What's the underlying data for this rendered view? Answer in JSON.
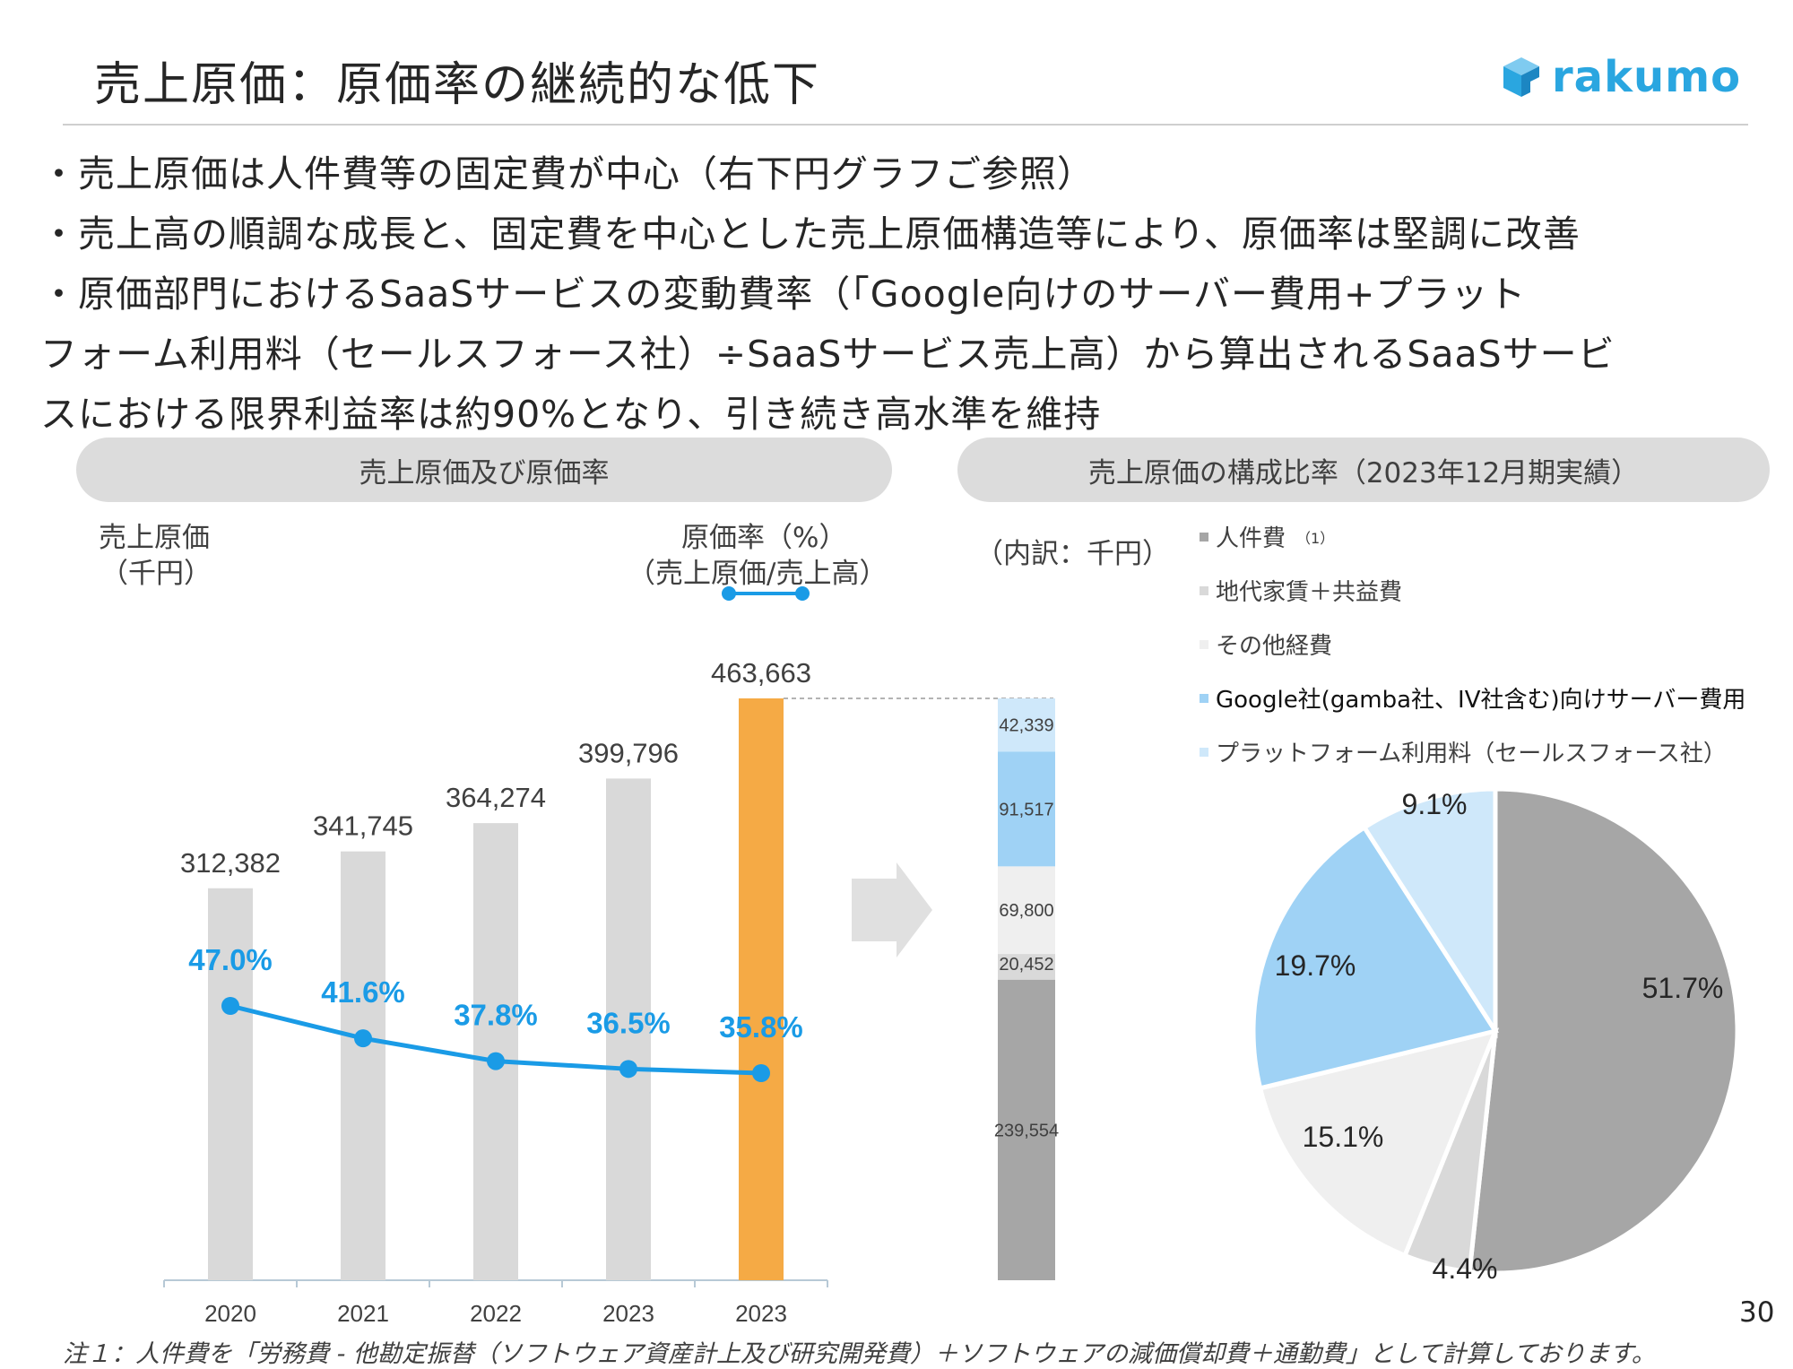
{
  "slide": {
    "title": "売上原価：原価率の継続的な低下",
    "logo_text": "rakumo",
    "page_number": "30",
    "footnote": "注１：人件費を「労務費 - 他勘定振替（ソフトウェア資産計上及び研究開発費）＋ソフトウェアの減価償却費＋通勤費」として計算しております。"
  },
  "bullets": [
    "・売上原価は人件費等の固定費が中心（右下円グラフご参照）",
    "・売上高の順調な成長と、固定費を中心とした売上原価構造等により、原価率は堅調に改善",
    "・原価部門におけるSaaSサービスの変動費率（「Google向けのサーバー費用+プラット",
    "フォーム利用料（セールスフォース社）÷SaaSサービス売上高）から算出されるSaaSサービ",
    "スにおける限界利益率は約90%となり、引き続き高水準を維持"
  ],
  "left_panel": {
    "header": "売上原価及び原価率",
    "y_label_line1": "売上原価",
    "y_label_line2": "（千円）",
    "rate_label_line1": "原価率（%）",
    "rate_label_line2": "（売上原価/売上高）"
  },
  "right_panel": {
    "header": "売上原価の構成比率（2023年12月期実績）",
    "unit_label": "（内訳：千円）",
    "legend": [
      {
        "label": "人件費",
        "note": "（1）",
        "color": "#a6a6a6"
      },
      {
        "label": "地代家賃＋共益費",
        "note": "",
        "color": "#d9d9d9"
      },
      {
        "label": "その他経費",
        "note": "",
        "color": "#efefef"
      },
      {
        "label": "Google社(gamba社、IV社含む)向けサーバー費用",
        "note": "",
        "color": "#9fd2f5"
      },
      {
        "label": "プラットフォーム利用料（セールスフォース社）",
        "note": "",
        "color": "#cfe8fa"
      }
    ]
  },
  "colors": {
    "bar_gray": "#d9d9d9",
    "bar_highlight": "#f5aa45",
    "line_blue": "#1a9be6",
    "pill_gray": "#dcdcdc",
    "logo_blue": "#2aa6e0"
  },
  "chart_data": [
    {
      "type": "bar",
      "categories": [
        "2020",
        "2021",
        "2022",
        "2023",
        "2023"
      ],
      "series": [
        {
          "values": [
            312382,
            341745,
            364274,
            399796,
            463663
          ]
        }
      ],
      "value_labels": [
        "312,382",
        "341,745",
        "364,274",
        "399,796",
        "463,663"
      ],
      "highlight_index": 4,
      "ylim": [
        0,
        463663
      ]
    },
    {
      "type": "line",
      "categories": [
        "2020",
        "2021",
        "2022",
        "2023",
        "2023"
      ],
      "series": [
        {
          "values": [
            47.0,
            41.6,
            37.8,
            36.5,
            35.8
          ]
        }
      ],
      "value_labels": [
        "47.0%",
        "41.6%",
        "37.8%",
        "36.5%",
        "35.8%"
      ]
    },
    {
      "type": "bar",
      "stacked": true,
      "segments": [
        {
          "value": 239554,
          "label": "239,554"
        },
        {
          "value": 20452,
          "label": "20,452"
        },
        {
          "value": 69800,
          "label": "69,800"
        },
        {
          "value": 91517,
          "label": "91,517"
        },
        {
          "value": 42339,
          "label": "42,339"
        }
      ]
    },
    {
      "type": "pie",
      "slices": [
        {
          "value": 51.7,
          "label": "51.7%"
        },
        {
          "value": 4.4,
          "label": "4.4%"
        },
        {
          "value": 15.1,
          "label": "15.1%"
        },
        {
          "value": 19.7,
          "label": "19.7%"
        },
        {
          "value": 9.1,
          "label": "9.1%"
        }
      ]
    }
  ]
}
